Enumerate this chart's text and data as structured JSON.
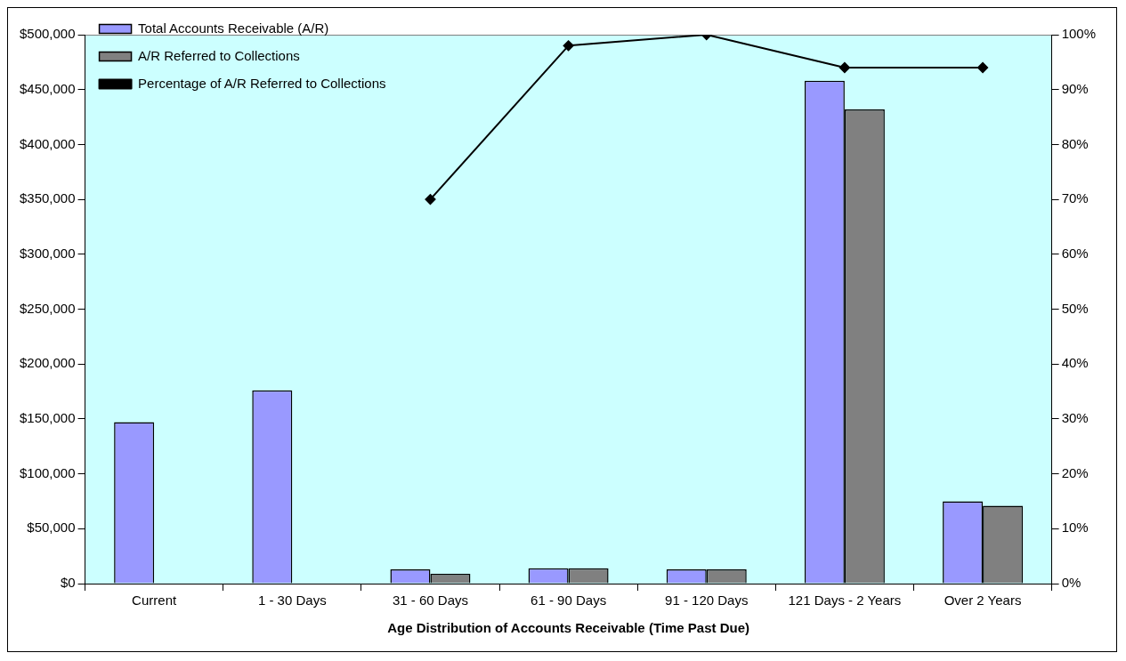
{
  "chart_data": {
    "type": "bar",
    "xlabel": "Age Distribution of Accounts Receivable (Time Past Due)",
    "categories": [
      "Current",
      "1 - 30 Days",
      "31 - 60 Days",
      "61 - 90 Days",
      "91 - 120 Days",
      "121 Days - 2 Years",
      "Over 2 Years"
    ],
    "series": [
      {
        "name": "Total Accounts Receivable (A/R)",
        "color": "#9999ff",
        "values": [
          147000,
          176000,
          13000,
          14000,
          13000,
          458000,
          75000
        ]
      },
      {
        "name": "A/R Referred to Collections",
        "color": "#808080",
        "values": [
          0,
          0,
          9000,
          14000,
          13000,
          432000,
          71000
        ]
      },
      {
        "name": "Percentage of A/R Referred to Collections",
        "type": "line",
        "axis": "y2",
        "color": "#000000",
        "marker": "diamond",
        "values": [
          null,
          null,
          70,
          98,
          100,
          94,
          94
        ]
      }
    ],
    "ylim": [
      0,
      500000
    ],
    "yticks": [
      {
        "value": 0,
        "label": "$0"
      },
      {
        "value": 50000,
        "label": "$50,000"
      },
      {
        "value": 100000,
        "label": "$100,000"
      },
      {
        "value": 150000,
        "label": "$150,000"
      },
      {
        "value": 200000,
        "label": "$200,000"
      },
      {
        "value": 250000,
        "label": "$250,000"
      },
      {
        "value": 300000,
        "label": "$300,000"
      },
      {
        "value": 350000,
        "label": "$350,000"
      },
      {
        "value": 400000,
        "label": "$400,000"
      },
      {
        "value": 450000,
        "label": "$450,000"
      },
      {
        "value": 500000,
        "label": "$500,000"
      }
    ],
    "y2lim": [
      0,
      100
    ],
    "y2ticks": [
      {
        "value": 0,
        "label": "0%"
      },
      {
        "value": 10,
        "label": "10%"
      },
      {
        "value": 20,
        "label": "20%"
      },
      {
        "value": 30,
        "label": "30%"
      },
      {
        "value": 40,
        "label": "40%"
      },
      {
        "value": 50,
        "label": "50%"
      },
      {
        "value": 60,
        "label": "60%"
      },
      {
        "value": 70,
        "label": "70%"
      },
      {
        "value": 80,
        "label": "80%"
      },
      {
        "value": 90,
        "label": "90%"
      },
      {
        "value": 100,
        "label": "100%"
      }
    ],
    "grid": false,
    "legend": "top left"
  }
}
